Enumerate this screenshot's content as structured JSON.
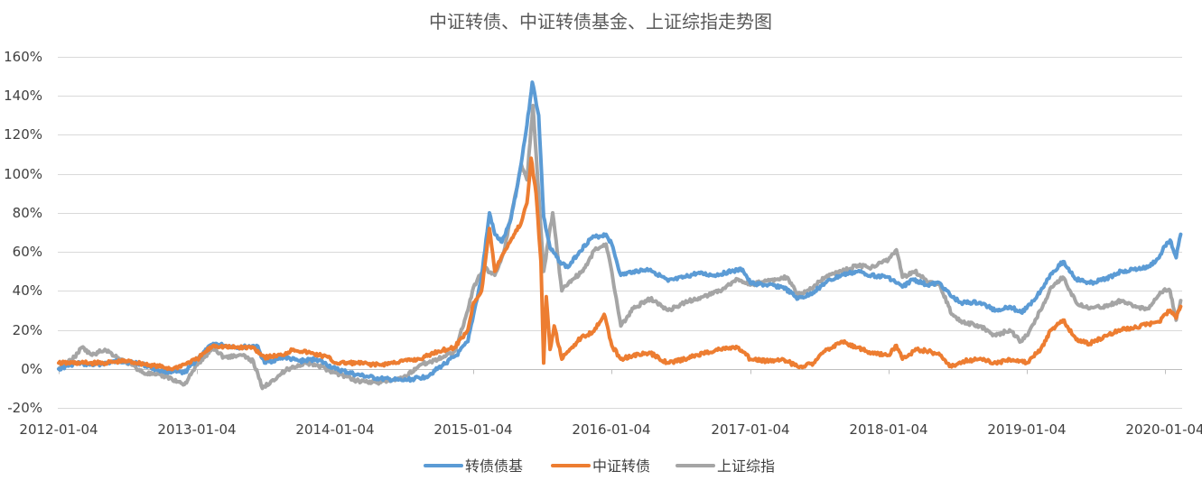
{
  "chart_data": {
    "type": "line",
    "title": "中证转债、中证转债基金、上证综指走势图",
    "xlabel": "",
    "ylabel": "",
    "ylim": [
      -0.2,
      1.6
    ],
    "grid": true,
    "legend_position": "bottom",
    "x_tick_labels": [
      "2012-01-04",
      "2013-01-04",
      "2014-01-04",
      "2015-01-04",
      "2016-01-04",
      "2017-01-04",
      "2018-01-04",
      "2019-01-04",
      "2020-01-04"
    ],
    "y_ticks": [
      -0.2,
      0.0,
      0.2,
      0.4,
      0.6,
      0.8,
      1.0,
      1.2,
      1.4,
      1.6
    ],
    "y_tick_labels": [
      "-20%",
      "0%",
      "20%",
      "40%",
      "60%",
      "80%",
      "100%",
      "120%",
      "140%",
      "160%"
    ],
    "series": [
      {
        "name": "转债债基",
        "color": "#5B9BD5",
        "points": [
          [
            "2012-01-04",
            0.0
          ],
          [
            "2012-02-20",
            0.03
          ],
          [
            "2012-04-01",
            0.02
          ],
          [
            "2012-06-15",
            0.04
          ],
          [
            "2012-08-01",
            0.03
          ],
          [
            "2012-10-01",
            -0.01
          ],
          [
            "2012-12-01",
            -0.02
          ],
          [
            "2013-01-04",
            0.05
          ],
          [
            "2013-02-15",
            0.13
          ],
          [
            "2013-03-15",
            0.12
          ],
          [
            "2013-05-01",
            0.11
          ],
          [
            "2013-06-10",
            0.12
          ],
          [
            "2013-07-01",
            0.03
          ],
          [
            "2013-08-20",
            0.06
          ],
          [
            "2013-10-01",
            0.04
          ],
          [
            "2013-11-15",
            0.05
          ],
          [
            "2014-01-04",
            0.0
          ],
          [
            "2014-03-01",
            -0.03
          ],
          [
            "2014-05-01",
            -0.05
          ],
          [
            "2014-07-01",
            -0.06
          ],
          [
            "2014-09-01",
            -0.04
          ],
          [
            "2014-10-15",
            0.02
          ],
          [
            "2014-11-20",
            0.07
          ],
          [
            "2014-12-20",
            0.14
          ],
          [
            "2015-01-04",
            0.28
          ],
          [
            "2015-01-25",
            0.47
          ],
          [
            "2015-02-15",
            0.8
          ],
          [
            "2015-03-01",
            0.69
          ],
          [
            "2015-03-20",
            0.65
          ],
          [
            "2015-04-10",
            0.75
          ],
          [
            "2015-05-01",
            0.95
          ],
          [
            "2015-05-25",
            1.25
          ],
          [
            "2015-06-08",
            1.47
          ],
          [
            "2015-06-25",
            1.3
          ],
          [
            "2015-07-08",
            0.78
          ],
          [
            "2015-07-25",
            0.62
          ],
          [
            "2015-08-20",
            0.55
          ],
          [
            "2015-09-10",
            0.52
          ],
          [
            "2015-10-10",
            0.6
          ],
          [
            "2015-11-10",
            0.67
          ],
          [
            "2015-12-20",
            0.69
          ],
          [
            "2016-01-04",
            0.64
          ],
          [
            "2016-01-28",
            0.48
          ],
          [
            "2016-03-01",
            0.5
          ],
          [
            "2016-04-15",
            0.51
          ],
          [
            "2016-06-01",
            0.45
          ],
          [
            "2016-07-15",
            0.47
          ],
          [
            "2016-08-15",
            0.49
          ],
          [
            "2016-10-01",
            0.48
          ],
          [
            "2016-11-15",
            0.5
          ],
          [
            "2016-12-15",
            0.51
          ],
          [
            "2017-01-04",
            0.44
          ],
          [
            "2017-02-15",
            0.43
          ],
          [
            "2017-04-01",
            0.42
          ],
          [
            "2017-05-10",
            0.36
          ],
          [
            "2017-06-10",
            0.38
          ],
          [
            "2017-07-20",
            0.44
          ],
          [
            "2017-09-01",
            0.48
          ],
          [
            "2017-10-15",
            0.5
          ],
          [
            "2017-11-20",
            0.48
          ],
          [
            "2018-01-04",
            0.47
          ],
          [
            "2018-02-10",
            0.42
          ],
          [
            "2018-03-10",
            0.46
          ],
          [
            "2018-04-15",
            0.43
          ],
          [
            "2018-05-20",
            0.44
          ],
          [
            "2018-06-20",
            0.37
          ],
          [
            "2018-07-15",
            0.34
          ],
          [
            "2018-09-01",
            0.34
          ],
          [
            "2018-10-15",
            0.3
          ],
          [
            "2018-11-20",
            0.32
          ],
          [
            "2018-12-20",
            0.29
          ],
          [
            "2019-01-04",
            0.31
          ],
          [
            "2019-02-10",
            0.4
          ],
          [
            "2019-03-10",
            0.49
          ],
          [
            "2019-04-10",
            0.55
          ],
          [
            "2019-05-15",
            0.46
          ],
          [
            "2019-06-20",
            0.44
          ],
          [
            "2019-08-01",
            0.46
          ],
          [
            "2019-09-10",
            0.5
          ],
          [
            "2019-10-15",
            0.51
          ],
          [
            "2019-11-20",
            0.52
          ],
          [
            "2019-12-20",
            0.57
          ],
          [
            "2020-01-04",
            0.63
          ],
          [
            "2020-01-18",
            0.66
          ],
          [
            "2020-02-03",
            0.57
          ],
          [
            "2020-02-15",
            0.69
          ]
        ]
      },
      {
        "name": "中证转债",
        "color": "#ED7D31",
        "points": [
          [
            "2012-01-04",
            0.03
          ],
          [
            "2012-03-01",
            0.03
          ],
          [
            "2012-05-01",
            0.03
          ],
          [
            "2012-07-01",
            0.04
          ],
          [
            "2012-09-01",
            0.02
          ],
          [
            "2012-11-01",
            0.0
          ],
          [
            "2013-01-04",
            0.05
          ],
          [
            "2013-02-15",
            0.12
          ],
          [
            "2013-04-01",
            0.11
          ],
          [
            "2013-06-01",
            0.11
          ],
          [
            "2013-07-01",
            0.06
          ],
          [
            "2013-08-15",
            0.07
          ],
          [
            "2013-09-15",
            0.1
          ],
          [
            "2013-11-01",
            0.08
          ],
          [
            "2013-12-15",
            0.06
          ],
          [
            "2014-01-04",
            0.03
          ],
          [
            "2014-03-01",
            0.03
          ],
          [
            "2014-05-01",
            0.02
          ],
          [
            "2014-07-01",
            0.04
          ],
          [
            "2014-08-15",
            0.05
          ],
          [
            "2014-10-01",
            0.09
          ],
          [
            "2014-11-15",
            0.11
          ],
          [
            "2014-12-20",
            0.2
          ],
          [
            "2015-01-04",
            0.34
          ],
          [
            "2015-01-25",
            0.4
          ],
          [
            "2015-02-15",
            0.72
          ],
          [
            "2015-03-01",
            0.5
          ],
          [
            "2015-03-20",
            0.58
          ],
          [
            "2015-04-15",
            0.67
          ],
          [
            "2015-05-10",
            0.75
          ],
          [
            "2015-05-25",
            0.85
          ],
          [
            "2015-06-05",
            1.08
          ],
          [
            "2015-06-18",
            0.9
          ],
          [
            "2015-07-01",
            0.55
          ],
          [
            "2015-07-08",
            0.03
          ],
          [
            "2015-07-15",
            0.37
          ],
          [
            "2015-07-25",
            0.1
          ],
          [
            "2015-08-05",
            0.22
          ],
          [
            "2015-08-25",
            0.05
          ],
          [
            "2015-09-15",
            0.1
          ],
          [
            "2015-10-15",
            0.16
          ],
          [
            "2015-11-15",
            0.19
          ],
          [
            "2015-12-15",
            0.28
          ],
          [
            "2016-01-04",
            0.12
          ],
          [
            "2016-01-28",
            0.05
          ],
          [
            "2016-03-01",
            0.07
          ],
          [
            "2016-04-15",
            0.08
          ],
          [
            "2016-06-01",
            0.03
          ],
          [
            "2016-07-15",
            0.05
          ],
          [
            "2016-09-01",
            0.08
          ],
          [
            "2016-10-15",
            0.1
          ],
          [
            "2016-12-01",
            0.11
          ],
          [
            "2017-01-04",
            0.05
          ],
          [
            "2017-02-15",
            0.04
          ],
          [
            "2017-04-01",
            0.05
          ],
          [
            "2017-05-10",
            0.01
          ],
          [
            "2017-06-20",
            0.03
          ],
          [
            "2017-07-20",
            0.09
          ],
          [
            "2017-09-01",
            0.14
          ],
          [
            "2017-10-15",
            0.11
          ],
          [
            "2017-11-20",
            0.08
          ],
          [
            "2018-01-04",
            0.07
          ],
          [
            "2018-01-25",
            0.12
          ],
          [
            "2018-02-10",
            0.05
          ],
          [
            "2018-03-20",
            0.1
          ],
          [
            "2018-04-20",
            0.09
          ],
          [
            "2018-05-20",
            0.07
          ],
          [
            "2018-06-20",
            0.01
          ],
          [
            "2018-07-20",
            0.04
          ],
          [
            "2018-09-01",
            0.05
          ],
          [
            "2018-10-15",
            0.03
          ],
          [
            "2018-11-20",
            0.05
          ],
          [
            "2018-12-20",
            0.04
          ],
          [
            "2019-01-04",
            0.03
          ],
          [
            "2019-02-10",
            0.1
          ],
          [
            "2019-03-10",
            0.2
          ],
          [
            "2019-04-10",
            0.25
          ],
          [
            "2019-05-15",
            0.15
          ],
          [
            "2019-06-20",
            0.13
          ],
          [
            "2019-08-01",
            0.17
          ],
          [
            "2019-09-10",
            0.2
          ],
          [
            "2019-10-15",
            0.21
          ],
          [
            "2019-11-20",
            0.23
          ],
          [
            "2019-12-20",
            0.24
          ],
          [
            "2020-01-04",
            0.28
          ],
          [
            "2020-01-18",
            0.3
          ],
          [
            "2020-02-03",
            0.26
          ],
          [
            "2020-02-15",
            0.32
          ]
        ]
      },
      {
        "name": "上证综指",
        "color": "#A5A5A5",
        "points": [
          [
            "2012-01-04",
            0.0
          ],
          [
            "2012-02-15",
            0.06
          ],
          [
            "2012-03-05",
            0.11
          ],
          [
            "2012-04-01",
            0.07
          ],
          [
            "2012-05-05",
            0.1
          ],
          [
            "2012-06-15",
            0.05
          ],
          [
            "2012-07-15",
            0.02
          ],
          [
            "2012-08-15",
            -0.02
          ],
          [
            "2012-09-15",
            -0.03
          ],
          [
            "2012-10-15",
            -0.04
          ],
          [
            "2012-12-01",
            -0.08
          ],
          [
            "2013-01-04",
            0.02
          ],
          [
            "2013-02-15",
            0.11
          ],
          [
            "2013-03-15",
            0.06
          ],
          [
            "2013-05-01",
            0.07
          ],
          [
            "2013-06-01",
            0.04
          ],
          [
            "2013-06-25",
            -0.1
          ],
          [
            "2013-07-20",
            -0.06
          ],
          [
            "2013-09-01",
            0.0
          ],
          [
            "2013-10-15",
            0.03
          ],
          [
            "2013-11-15",
            0.02
          ],
          [
            "2014-01-04",
            -0.02
          ],
          [
            "2014-03-01",
            -0.06
          ],
          [
            "2014-05-01",
            -0.07
          ],
          [
            "2014-07-01",
            -0.05
          ],
          [
            "2014-08-15",
            0.02
          ],
          [
            "2014-10-01",
            0.05
          ],
          [
            "2014-11-15",
            0.09
          ],
          [
            "2014-12-20",
            0.3
          ],
          [
            "2015-01-04",
            0.42
          ],
          [
            "2015-02-01",
            0.52
          ],
          [
            "2015-03-01",
            0.48
          ],
          [
            "2015-03-25",
            0.6
          ],
          [
            "2015-04-15",
            0.8
          ],
          [
            "2015-05-10",
            1.05
          ],
          [
            "2015-05-25",
            0.97
          ],
          [
            "2015-06-10",
            1.35
          ],
          [
            "2015-06-25",
            0.9
          ],
          [
            "2015-07-08",
            0.5
          ],
          [
            "2015-07-20",
            0.65
          ],
          [
            "2015-08-01",
            0.8
          ],
          [
            "2015-08-25",
            0.4
          ],
          [
            "2015-09-15",
            0.45
          ],
          [
            "2015-10-20",
            0.5
          ],
          [
            "2015-11-20",
            0.61
          ],
          [
            "2015-12-20",
            0.64
          ],
          [
            "2016-01-04",
            0.5
          ],
          [
            "2016-01-28",
            0.22
          ],
          [
            "2016-03-01",
            0.31
          ],
          [
            "2016-04-15",
            0.36
          ],
          [
            "2016-06-01",
            0.3
          ],
          [
            "2016-07-15",
            0.34
          ],
          [
            "2016-09-01",
            0.37
          ],
          [
            "2016-10-15",
            0.4
          ],
          [
            "2016-12-01",
            0.46
          ],
          [
            "2016-12-20",
            0.44
          ],
          [
            "2017-01-04",
            0.43
          ],
          [
            "2017-02-15",
            0.45
          ],
          [
            "2017-04-10",
            0.47
          ],
          [
            "2017-05-10",
            0.38
          ],
          [
            "2017-06-20",
            0.42
          ],
          [
            "2017-07-20",
            0.47
          ],
          [
            "2017-09-01",
            0.5
          ],
          [
            "2017-10-15",
            0.53
          ],
          [
            "2017-11-20",
            0.52
          ],
          [
            "2018-01-04",
            0.56
          ],
          [
            "2018-01-25",
            0.61
          ],
          [
            "2018-02-10",
            0.47
          ],
          [
            "2018-03-15",
            0.5
          ],
          [
            "2018-04-15",
            0.45
          ],
          [
            "2018-05-20",
            0.43
          ],
          [
            "2018-06-20",
            0.28
          ],
          [
            "2018-07-20",
            0.24
          ],
          [
            "2018-09-01",
            0.22
          ],
          [
            "2018-10-15",
            0.17
          ],
          [
            "2018-11-20",
            0.2
          ],
          [
            "2018-12-20",
            0.14
          ],
          [
            "2019-01-04",
            0.17
          ],
          [
            "2019-02-10",
            0.3
          ],
          [
            "2019-03-10",
            0.42
          ],
          [
            "2019-04-10",
            0.47
          ],
          [
            "2019-05-15",
            0.34
          ],
          [
            "2019-06-20",
            0.31
          ],
          [
            "2019-08-01",
            0.32
          ],
          [
            "2019-09-10",
            0.35
          ],
          [
            "2019-10-15",
            0.32
          ],
          [
            "2019-11-20",
            0.31
          ],
          [
            "2019-12-20",
            0.38
          ],
          [
            "2020-01-04",
            0.41
          ],
          [
            "2020-01-18",
            0.4
          ],
          [
            "2020-02-03",
            0.25
          ],
          [
            "2020-02-15",
            0.35
          ]
        ]
      }
    ]
  }
}
